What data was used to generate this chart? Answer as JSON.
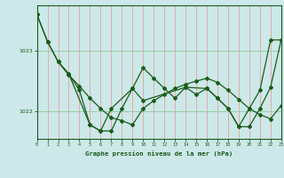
{
  "title": "Graphe pression niveau de la mer (hPa)",
  "bg_color": "#cce8e8",
  "line_color": "#1a5c1a",
  "vgrid_color": "#e8a0a0",
  "hgrid_color": "#99ccaa",
  "xlim": [
    0,
    23
  ],
  "ylim": [
    1021.55,
    1023.75
  ],
  "yticks": [
    1022,
    1023
  ],
  "xticks": [
    0,
    1,
    2,
    3,
    4,
    5,
    6,
    7,
    8,
    9,
    10,
    11,
    12,
    13,
    14,
    15,
    16,
    17,
    18,
    19,
    20,
    21,
    22,
    23
  ],
  "line1_x": [
    0,
    1,
    2,
    3,
    4,
    5,
    6,
    7,
    8,
    9,
    10,
    11,
    12,
    13,
    14,
    15,
    16,
    17,
    18,
    19,
    20,
    21,
    22,
    23
  ],
  "line1_y": [
    1023.6,
    1023.15,
    1022.82,
    1022.6,
    1022.42,
    1022.22,
    1022.05,
    1021.9,
    1021.85,
    1021.78,
    1022.05,
    1022.18,
    1022.28,
    1022.38,
    1022.45,
    1022.5,
    1022.55,
    1022.48,
    1022.35,
    1022.2,
    1022.05,
    1021.95,
    1021.88,
    1022.1
  ],
  "line2_x": [
    2,
    3,
    4,
    5,
    6,
    7,
    8,
    9,
    10,
    11,
    12,
    13,
    14,
    15,
    16,
    17,
    18,
    19,
    20,
    21,
    22,
    23
  ],
  "line2_y": [
    1022.82,
    1022.62,
    1022.35,
    1021.78,
    1021.68,
    1021.68,
    1022.05,
    1022.38,
    1022.72,
    1022.55,
    1022.38,
    1022.22,
    1022.4,
    1022.28,
    1022.38,
    1022.22,
    1022.05,
    1021.75,
    1021.75,
    1022.05,
    1022.4,
    1023.18
  ],
  "line3_x": [
    0,
    1,
    2,
    3,
    5,
    6,
    7,
    9,
    10,
    14,
    16,
    17,
    18,
    19,
    20,
    21,
    22,
    23
  ],
  "line3_y": [
    1023.6,
    1023.15,
    1022.82,
    1022.62,
    1021.78,
    1021.68,
    1022.05,
    1022.38,
    1022.18,
    1022.4,
    1022.38,
    1022.22,
    1022.05,
    1021.75,
    1022.05,
    1022.35,
    1023.18,
    1023.18
  ]
}
